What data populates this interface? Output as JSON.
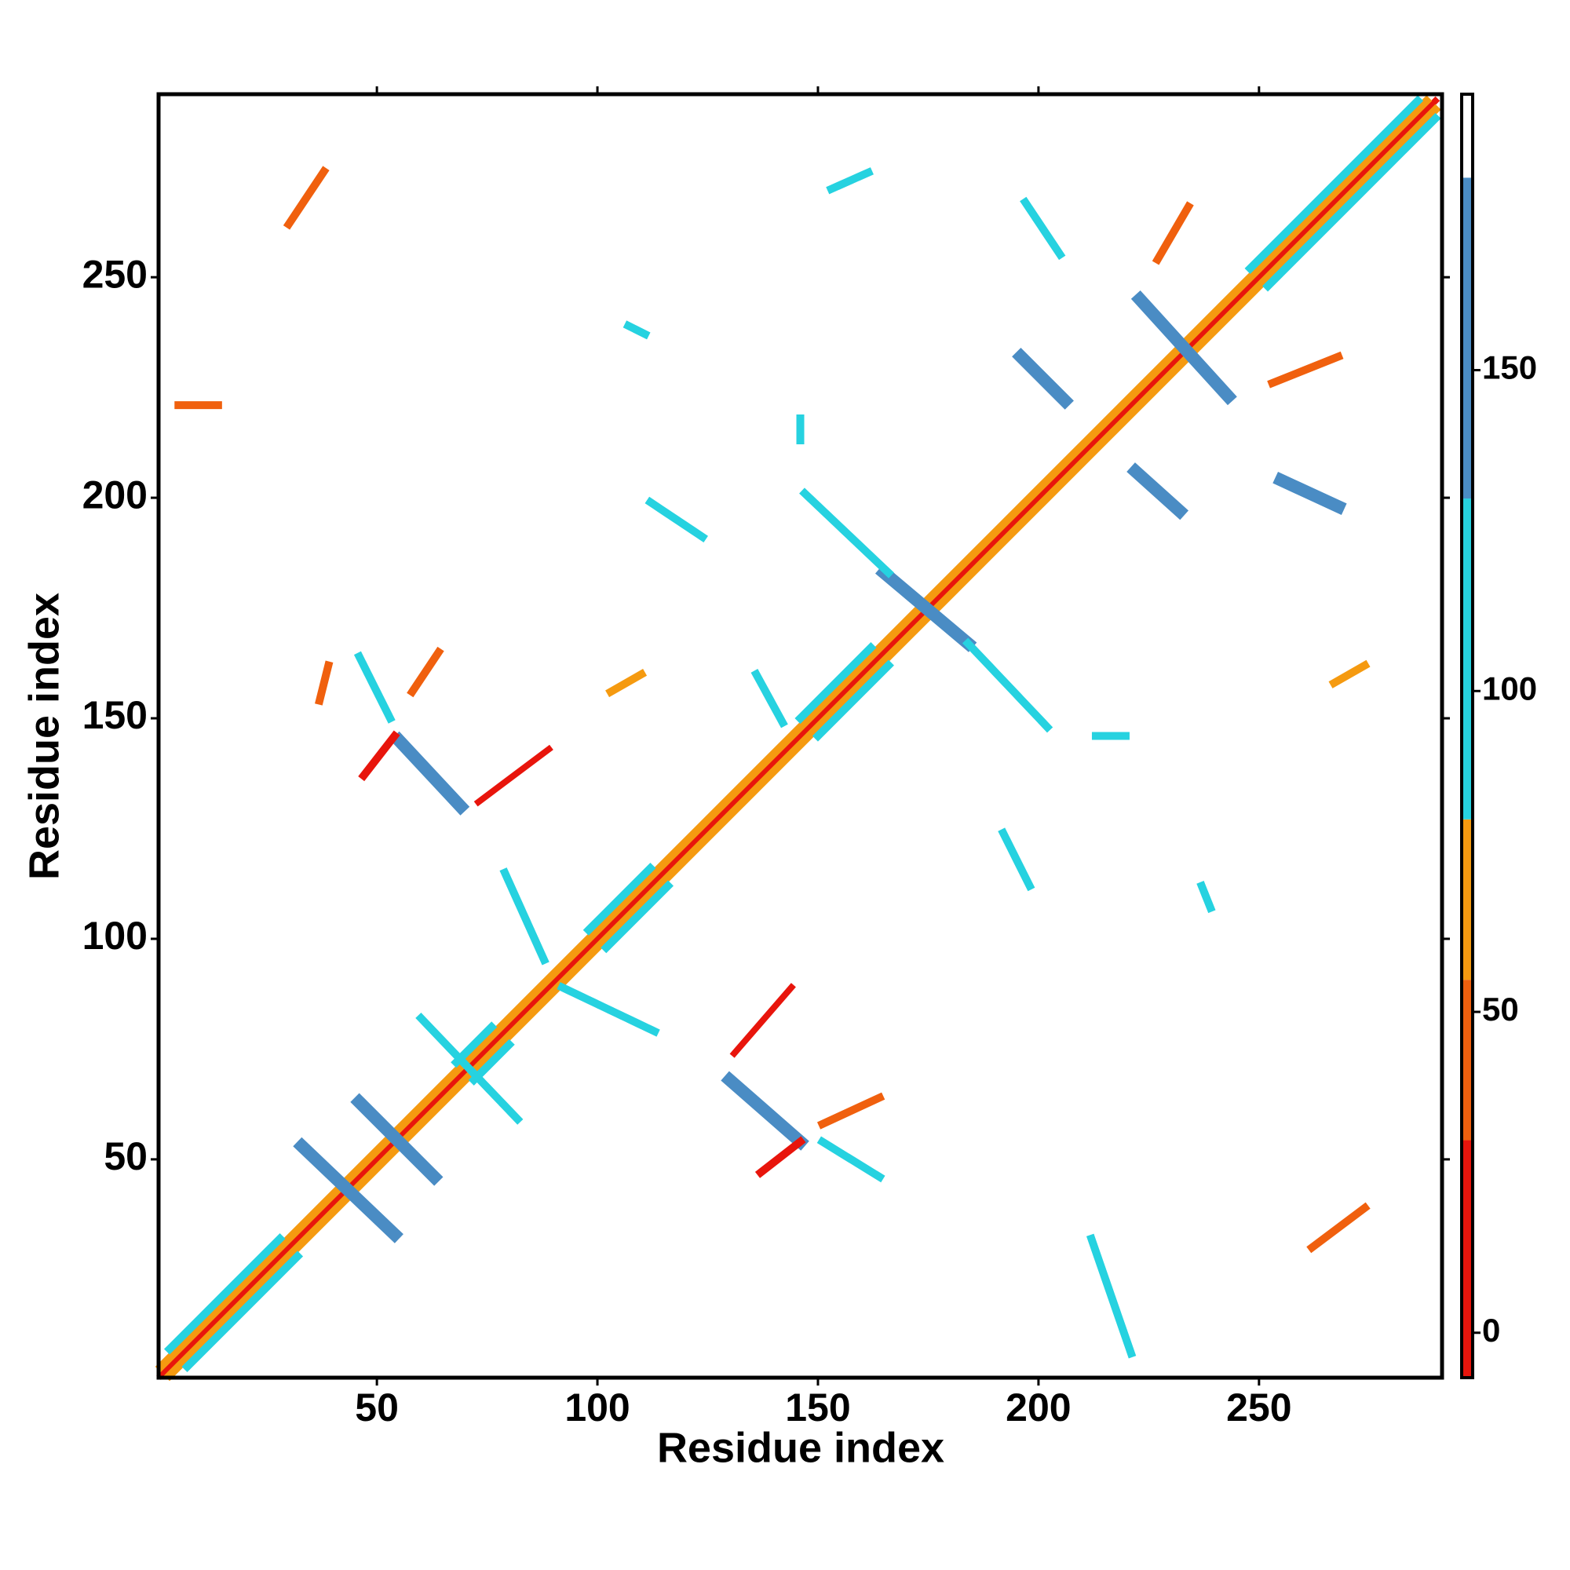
{
  "chart_data": {
    "type": "contact-map",
    "xlabel": "Residue index",
    "ylabel": "Residue index",
    "xlim": [
      0.5,
      291.5
    ],
    "ylim": [
      0.5,
      291.5
    ],
    "xticks": [
      50,
      100,
      150,
      200,
      250
    ],
    "yticks": [
      50,
      100,
      150,
      200,
      250
    ],
    "colorbar": {
      "lim": [
        -7,
        193
      ],
      "ticks": [
        0,
        50,
        100,
        150
      ],
      "bounds": [
        -7,
        30,
        55,
        80,
        130,
        180,
        193
      ],
      "colors": [
        "#e8150c",
        "#f0600e",
        "#f59a10",
        "#26d2e0",
        "#4a8cc4",
        "#ffffff"
      ]
    },
    "segments": {
      "x0": [
        1,
        1,
        3,
        3,
        7,
        98,
        102,
        146,
        150,
        248,
        252,
        68,
        72,
        33,
        46,
        55,
        130,
        73,
        131,
        165,
        147,
        184,
        196,
        222,
        223,
        79,
        92,
        151,
        58,
        37,
        46,
        151,
        47,
        137,
        253,
        255,
        227,
        197,
        153,
        30,
        5,
        262,
        212,
        192,
        112,
        146,
        213,
        267,
        103,
        136,
        237,
        60,
        107
      ],
      "y0": [
        1,
        3,
        1,
        7,
        3,
        102,
        98,
        150,
        146,
        252,
        248,
        72,
        68,
        53,
        63,
        145,
        68,
        131,
        74,
        183,
        201,
        167,
        232,
        206,
        245,
        115,
        89,
        58,
        156,
        154,
        164,
        54,
        137,
        47,
        226,
        204,
        254,
        267,
        270,
        262,
        221,
        30,
        32,
        124,
        199,
        218,
        146,
        158,
        156,
        160,
        112,
        82,
        239
      ],
      "x1": [
        290,
        288,
        290,
        28,
        32,
        112,
        116,
        162,
        166,
        286,
        290,
        76,
        80,
        54,
        63,
        69,
        146,
        89,
        144,
        184,
        166,
        202,
        206,
        232,
        243,
        88,
        113,
        164,
        64,
        39,
        53,
        164,
        54,
        146,
        268,
        268,
        234,
        205,
        162,
        38,
        14,
        274,
        221,
        198,
        124,
        146,
        220,
        274,
        110,
        142,
        239,
        82,
        111
      ],
      "y1": [
        290,
        290,
        288,
        32,
        28,
        116,
        112,
        166,
        162,
        290,
        286,
        80,
        76,
        33,
        46,
        130,
        54,
        143,
        89,
        167,
        183,
        148,
        222,
        197,
        223,
        95,
        79,
        64,
        165,
        162,
        150,
        46,
        146,
        54,
        232,
        198,
        266,
        255,
        274,
        274,
        221,
        39,
        6,
        112,
        191,
        213,
        146,
        162,
        160,
        149,
        107,
        59,
        237
      ],
      "values": [
        0,
        60,
        60,
        95,
        95,
        95,
        95,
        95,
        95,
        95,
        95,
        95,
        95,
        150,
        150,
        150,
        150,
        -5,
        -5,
        150,
        100,
        100,
        150,
        150,
        150,
        100,
        100,
        45,
        45,
        45,
        100,
        100,
        10,
        10,
        40,
        140,
        40,
        120,
        100,
        45,
        55,
        45,
        100,
        100,
        100,
        100,
        100,
        70,
        70,
        120,
        100,
        110,
        100
      ]
    }
  }
}
